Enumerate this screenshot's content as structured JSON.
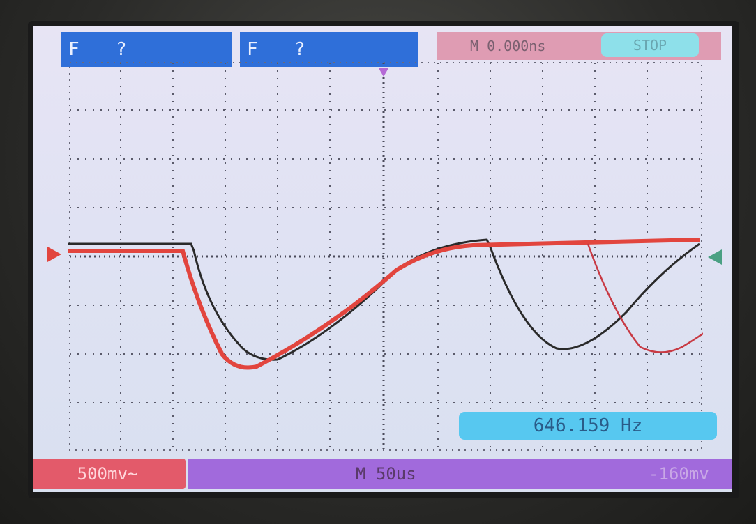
{
  "top": {
    "ch1_label": "F",
    "ch1_value": "?",
    "ch2_label": "F",
    "ch2_value": "?",
    "time_position": "M 0.000ns",
    "run_state": "STOP"
  },
  "bottom": {
    "ch_scale": "500mv~",
    "timebase": "M 50us",
    "offset": "-160mv"
  },
  "measurement": {
    "frequency": "646.159 Hz"
  },
  "colors": {
    "ch1_trace": "#e2453e",
    "ch2_trace": "#2a2a2a",
    "grid_dots": "#5a5a6a",
    "top_blue": "#2f6fd9",
    "top_pink": "#df9cb3",
    "stop_cyan": "#8ee0ea",
    "bottom_red": "#e35a6a",
    "bottom_purple": "#a16adc",
    "freq_cyan": "#57c8f0",
    "trigger_marker_purple": "#b56ad6",
    "ch1_marker": "#e2453e",
    "ch2_marker": "#4aa083"
  },
  "markers": {
    "trigger_icon": "triangle-down-icon",
    "ch1_level_icon": "triangle-right-icon",
    "ch2_level_icon": "triangle-left-icon"
  }
}
